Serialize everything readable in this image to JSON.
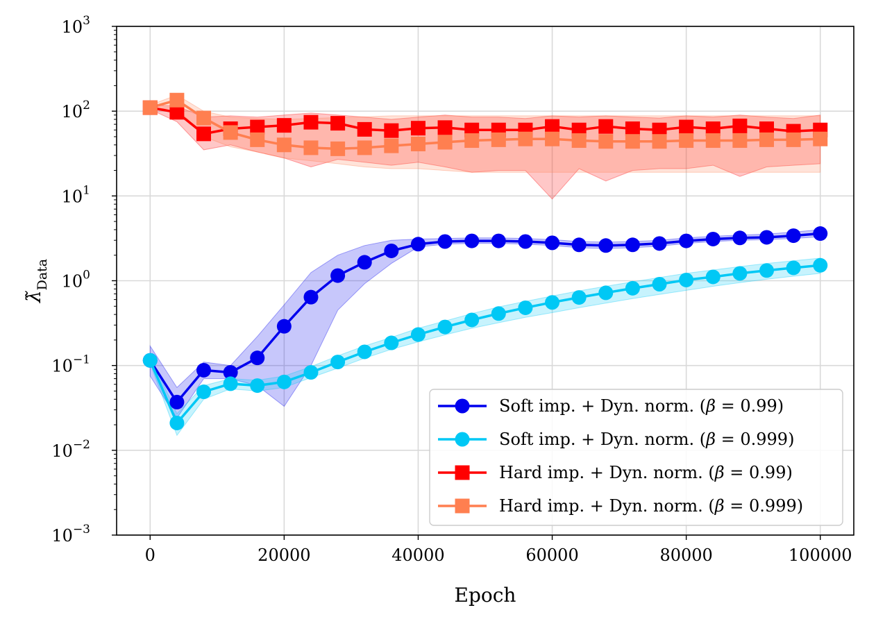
{
  "chart_data": {
    "type": "line",
    "title": "",
    "xlabel": "Epoch",
    "ylabel": "λ̃_Data",
    "yscale": "log",
    "xlim": [
      -5000,
      105000
    ],
    "ylim": [
      0.001,
      1000
    ],
    "xticks": [
      0,
      20000,
      40000,
      60000,
      80000,
      100000
    ],
    "xtick_labels": [
      "0",
      "20000",
      "40000",
      "60000",
      "80000",
      "100000"
    ],
    "yticks": [
      0.001,
      0.01,
      0.1,
      1,
      10,
      100,
      1000
    ],
    "ytick_labels": [
      {
        "base": "10",
        "exp": "−3"
      },
      {
        "base": "10",
        "exp": "−2"
      },
      {
        "base": "10",
        "exp": "−1"
      },
      {
        "base": "10",
        "exp": "0"
      },
      {
        "base": "10",
        "exp": "1"
      },
      {
        "base": "10",
        "exp": "2"
      },
      {
        "base": "10",
        "exp": "3"
      }
    ],
    "grid": true,
    "legend_position": "lower-right",
    "x": [
      0,
      4000,
      8000,
      12000,
      16000,
      20000,
      24000,
      28000,
      32000,
      36000,
      40000,
      44000,
      48000,
      52000,
      56000,
      60000,
      64000,
      68000,
      72000,
      76000,
      80000,
      84000,
      88000,
      92000,
      96000,
      100000
    ],
    "series": [
      {
        "name": "Soft imp. + Dyn. norm. (β = 0.99)",
        "label_prefix": "Soft imp. + Dyn. norm. (",
        "beta_value": "0.99",
        "label_suffix": ")",
        "color": "#0000ee",
        "marker": "circle",
        "values": [
          0.115,
          0.037,
          0.088,
          0.083,
          0.123,
          0.29,
          0.64,
          1.15,
          1.65,
          2.25,
          2.7,
          2.9,
          2.95,
          2.95,
          2.9,
          2.8,
          2.65,
          2.6,
          2.65,
          2.75,
          2.95,
          3.1,
          3.2,
          3.25,
          3.4,
          3.6
        ],
        "lower": [
          0.075,
          0.024,
          0.07,
          0.07,
          0.058,
          0.033,
          0.1,
          0.45,
          0.92,
          1.6,
          2.5,
          2.7,
          2.75,
          2.75,
          2.7,
          2.6,
          2.45,
          2.4,
          2.45,
          2.55,
          2.75,
          2.9,
          3.0,
          3.05,
          3.15,
          3.3
        ],
        "upper": [
          0.17,
          0.055,
          0.11,
          0.1,
          0.22,
          0.52,
          1.25,
          2.0,
          2.6,
          3.0,
          3.1,
          3.15,
          3.2,
          3.2,
          3.15,
          3.05,
          2.9,
          2.85,
          2.9,
          3.0,
          3.2,
          3.35,
          3.45,
          3.55,
          3.75,
          4.0
        ]
      },
      {
        "name": "Soft imp. + Dyn. norm. (β = 0.999)",
        "label_prefix": "Soft imp. + Dyn. norm. (",
        "beta_value": "0.999",
        "label_suffix": ")",
        "color": "#00c8f5",
        "marker": "circle",
        "values": [
          0.115,
          0.021,
          0.049,
          0.061,
          0.058,
          0.064,
          0.083,
          0.11,
          0.145,
          0.185,
          0.232,
          0.285,
          0.345,
          0.41,
          0.48,
          0.555,
          0.635,
          0.72,
          0.815,
          0.91,
          1.02,
          1.11,
          1.22,
          1.32,
          1.42,
          1.52
        ],
        "lower": [
          0.105,
          0.015,
          0.04,
          0.053,
          0.05,
          0.055,
          0.072,
          0.093,
          0.122,
          0.155,
          0.19,
          0.23,
          0.275,
          0.32,
          0.37,
          0.42,
          0.48,
          0.545,
          0.615,
          0.69,
          0.77,
          0.86,
          0.95,
          1.04,
          1.13,
          1.22
        ],
        "upper": [
          0.13,
          0.027,
          0.058,
          0.07,
          0.067,
          0.075,
          0.097,
          0.13,
          0.17,
          0.215,
          0.275,
          0.335,
          0.41,
          0.49,
          0.57,
          0.66,
          0.76,
          0.86,
          0.97,
          1.09,
          1.22,
          1.34,
          1.47,
          1.6,
          1.72,
          1.85
        ]
      },
      {
        "name": "Hard imp. + Dyn. norm. (β = 0.99)",
        "label_prefix": "Hard imp. + Dyn. norm. (",
        "beta_value": "0.99",
        "label_suffix": ")",
        "color": "#ff0000",
        "marker": "square",
        "values": [
          110,
          97,
          54,
          62,
          65,
          68,
          74,
          72,
          61,
          59,
          63,
          64,
          60,
          60,
          60,
          66,
          60,
          66,
          62,
          60,
          65,
          62,
          67,
          62,
          58,
          60
        ],
        "lower": [
          105,
          75,
          35,
          40,
          33,
          28,
          22,
          27,
          25,
          23,
          25,
          22,
          19,
          20,
          20,
          9.2,
          21,
          15,
          20,
          21,
          21,
          23,
          17,
          22,
          23,
          24
        ],
        "upper": [
          118,
          115,
          85,
          88,
          85,
          90,
          95,
          90,
          85,
          80,
          85,
          90,
          85,
          85,
          82,
          88,
          85,
          88,
          85,
          83,
          88,
          85,
          90,
          85,
          82,
          90
        ]
      },
      {
        "name": "Hard imp. + Dyn. norm. (β = 0.999)",
        "label_prefix": "Hard imp. + Dyn. norm. (",
        "beta_value": "0.999",
        "label_suffix": ")",
        "color": "#ff7f50",
        "marker": "square",
        "values": [
          110,
          135,
          83,
          56,
          46,
          40,
          37,
          36,
          37,
          39,
          41,
          43,
          45,
          46,
          47,
          47,
          45,
          44,
          44,
          44,
          45,
          45,
          45,
          46,
          46,
          47
        ],
        "lower": [
          105,
          110,
          50,
          38,
          33,
          28,
          26,
          24,
          22,
          21,
          21,
          20,
          19,
          19,
          19,
          19,
          19,
          19,
          19,
          19,
          19,
          19,
          19,
          19,
          19,
          19
        ],
        "upper": [
          118,
          155,
          100,
          85,
          82,
          80,
          82,
          84,
          86,
          88,
          88,
          88,
          88,
          88,
          88,
          88,
          88,
          88,
          88,
          88,
          88,
          88,
          88,
          88,
          88,
          88
        ]
      }
    ]
  }
}
